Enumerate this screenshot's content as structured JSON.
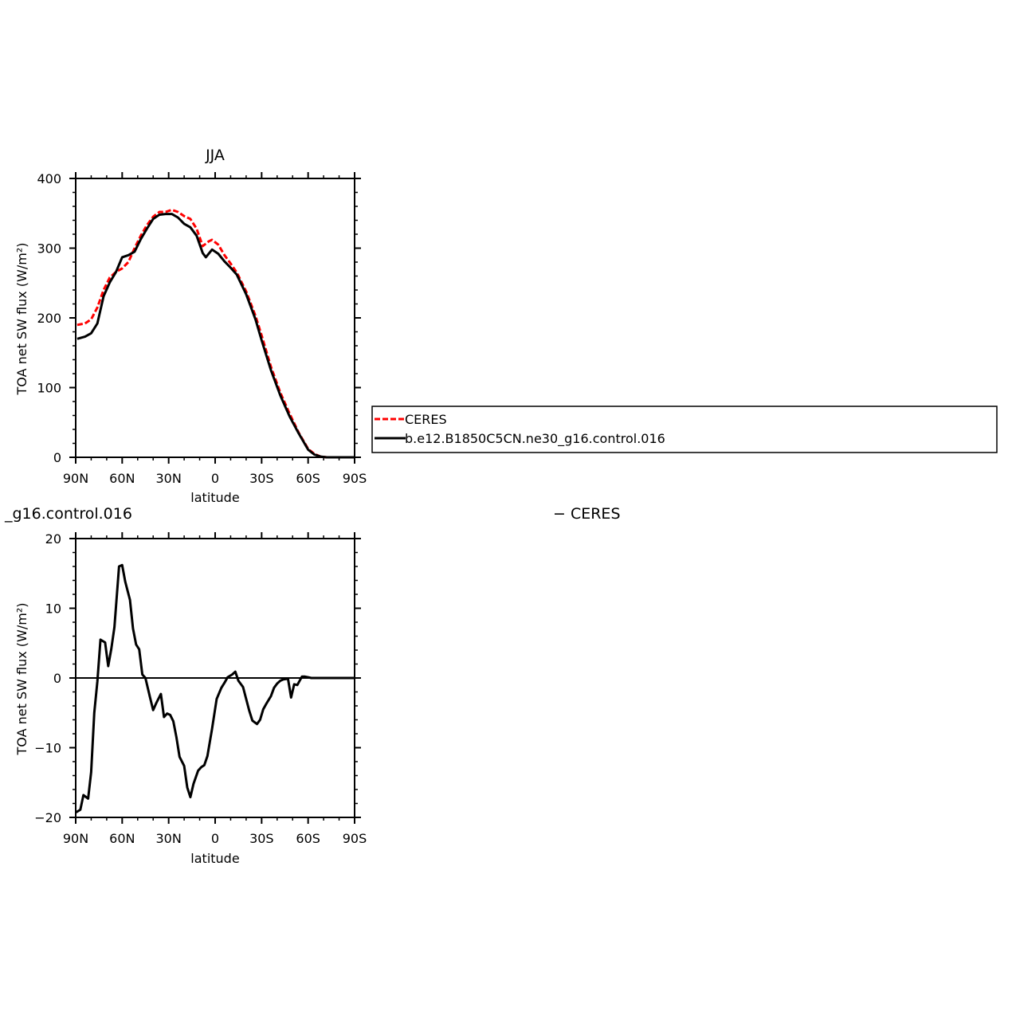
{
  "chart_data": [
    {
      "type": "line",
      "title": "JJA",
      "xlabel": "latitude",
      "ylabel": "TOA net SW flux (W/m²)",
      "xlim": [
        90,
        -90
      ],
      "ylim": [
        0,
        400
      ],
      "xticks": [
        90,
        60,
        30,
        0,
        -30,
        -60,
        -90
      ],
      "xtick_labels": [
        "90N",
        "60N",
        "30N",
        "0",
        "30S",
        "60S",
        "90S"
      ],
      "yticks": [
        0,
        100,
        200,
        300,
        400
      ],
      "ytick_labels": [
        "0",
        "100",
        "200",
        "300",
        "400"
      ],
      "legend_position": "right",
      "series": [
        {
          "name": "CERES",
          "color": "#ff0000",
          "dash": "dashed",
          "x": [
            89,
            84,
            80,
            76,
            72,
            68,
            64,
            60,
            56,
            52,
            48,
            44,
            40,
            36,
            32,
            28,
            24,
            20,
            16,
            12,
            8,
            4,
            2,
            -2,
            -6,
            -10,
            -14,
            -20,
            -26,
            -30,
            -36,
            -42,
            -48,
            -54,
            -60,
            -64,
            -68,
            -72,
            -76,
            -80,
            -86,
            -90
          ],
          "y": [
            190,
            192,
            198,
            215,
            240,
            258,
            266,
            271,
            280,
            300,
            318,
            333,
            345,
            352,
            352,
            355,
            352,
            346,
            342,
            328,
            303,
            310,
            312,
            305,
            290,
            278,
            265,
            238,
            203,
            175,
            130,
            93,
            63,
            35,
            12,
            5,
            1,
            0,
            0,
            0,
            0,
            0
          ]
        },
        {
          "name": "b.e12.B1850C5CN.ne30_g16.control.016",
          "color": "#000000",
          "dash": "solid",
          "x": [
            89,
            84,
            80,
            76,
            72,
            68,
            64,
            60,
            56,
            52,
            48,
            44,
            40,
            36,
            32,
            28,
            24,
            20,
            16,
            12,
            8,
            6,
            2,
            -2,
            -6,
            -10,
            -14,
            -20,
            -26,
            -30,
            -36,
            -42,
            -48,
            -54,
            -60,
            -64,
            -68,
            -72,
            -76,
            -80,
            -86,
            -90
          ],
          "y": [
            170,
            173,
            178,
            192,
            231,
            251,
            266,
            287,
            290,
            295,
            313,
            328,
            342,
            348,
            349,
            349,
            344,
            335,
            330,
            318,
            293,
            287,
            298,
            292,
            281,
            272,
            262,
            234,
            198,
            168,
            125,
            89,
            59,
            34,
            11,
            4,
            1,
            0,
            0,
            0,
            0,
            0
          ]
        }
      ]
    },
    {
      "type": "line",
      "title": "_g16.control.016",
      "title_right": "− CERES",
      "xlabel": "latitude",
      "ylabel": "TOA net SW flux (W/m²)",
      "xlim": [
        90,
        -90
      ],
      "ylim": [
        -20,
        20
      ],
      "xticks": [
        90,
        60,
        30,
        0,
        -30,
        -60,
        -90
      ],
      "xtick_labels": [
        "90N",
        "60N",
        "30N",
        "0",
        "30S",
        "60S",
        "90S"
      ],
      "yticks": [
        -20,
        -10,
        0,
        10,
        20
      ],
      "ytick_labels": [
        "−20",
        "−10",
        "0",
        "10",
        "20"
      ],
      "series": [
        {
          "color": "#000000",
          "dash": "solid",
          "x": [
            90,
            87,
            85,
            82,
            80,
            78,
            76,
            74,
            71,
            69,
            67,
            65,
            62,
            60,
            58,
            55,
            53,
            51,
            49,
            47,
            45,
            42,
            40,
            38,
            35,
            33,
            31,
            29,
            27,
            25,
            23,
            20,
            18,
            16,
            14,
            11,
            9,
            7,
            5,
            2,
            -1,
            -4,
            -6,
            -8,
            -11,
            -13,
            -15,
            -18,
            -20,
            -22,
            -24,
            -27,
            -29,
            -31,
            -33,
            -36,
            -38,
            -40,
            -42,
            -44,
            -47,
            -49,
            -51,
            -53,
            -56,
            -58,
            -60,
            -62,
            -64,
            -67,
            -69,
            -71,
            -73,
            -76,
            -78,
            -80,
            -82,
            -85,
            -87,
            -90
          ],
          "y": [
            -19.3,
            -18.9,
            -16.8,
            -17.3,
            -13.5,
            -5.0,
            -0.5,
            5.5,
            5.1,
            1.7,
            4.2,
            7.3,
            16.0,
            16.2,
            13.8,
            11.2,
            7.1,
            4.8,
            4.1,
            0.5,
            0.0,
            -2.8,
            -4.6,
            -3.6,
            -2.3,
            -5.6,
            -5.1,
            -5.3,
            -6.2,
            -8.5,
            -11.3,
            -12.6,
            -15.7,
            -17.1,
            -15.2,
            -13.3,
            -12.8,
            -12.5,
            -11.2,
            -7.3,
            -3.0,
            -1.4,
            -0.7,
            0.1,
            0.5,
            0.9,
            -0.4,
            -1.3,
            -3.0,
            -4.7,
            -6.1,
            -6.6,
            -6.0,
            -4.5,
            -3.7,
            -2.6,
            -1.4,
            -0.8,
            -0.4,
            -0.2,
            -0.1,
            -2.8,
            -0.9,
            -1.0,
            0.2,
            0.2,
            0.1,
            0.0,
            0.0,
            0.0,
            0.0,
            0.0,
            0.0,
            0.0,
            0.0,
            0.0,
            0.0,
            0.0,
            0.0,
            0.0
          ]
        }
      ]
    }
  ]
}
